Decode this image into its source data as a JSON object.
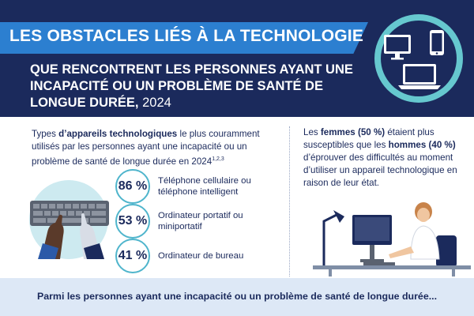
{
  "header": {
    "title": "LES OBSTACLES LIÉS À LA TECHNOLOGIE",
    "subtitle_main": "QUE RENCONTRENT LES PERSONNES AYANT UNE INCAPACITÉ OU UN PROBLÈME DE SANTÉ DE LONGUE DURÉE,",
    "subtitle_year": " 2024"
  },
  "left": {
    "intro_pre": "Types ",
    "intro_bold": "d’appareils technologiques",
    "intro_post": " le plus couramment utilisés par les personnes ayant une incapacité ou un problème de santé de longue durée en 2024",
    "intro_sup": "1,2,3",
    "stats": [
      {
        "pct": "86 %",
        "label": "Téléphone cellulaire ou téléphone intelligent"
      },
      {
        "pct": "53 %",
        "label": "Ordinateur portatif ou miniportatif"
      },
      {
        "pct": "41 %",
        "label": "Ordinateur de bureau"
      }
    ]
  },
  "right": {
    "t1": "Les ",
    "b1": "femmes (50 %)",
    "t2": " étaient plus susceptibles que les ",
    "b2": "hommes (40 %)",
    "t3": " d’éprouver des difficultés au moment d’utiliser un appareil technologique en raison de leur état."
  },
  "footer": {
    "text": "Parmi les personnes ayant une incapacité ou un problème de santé de longue durée..."
  },
  "colors": {
    "navy": "#1b2a5c",
    "blue_band": "#2c7fd0",
    "teal": "#66c8cf",
    "light_blue": "#cdeaf0",
    "footer_bg": "#dde8f6"
  },
  "icons": [
    "desktop-monitor-icon",
    "smartphone-icon",
    "laptop-icon",
    "keyboard-hands-illustration",
    "woman-at-computer-illustration"
  ]
}
